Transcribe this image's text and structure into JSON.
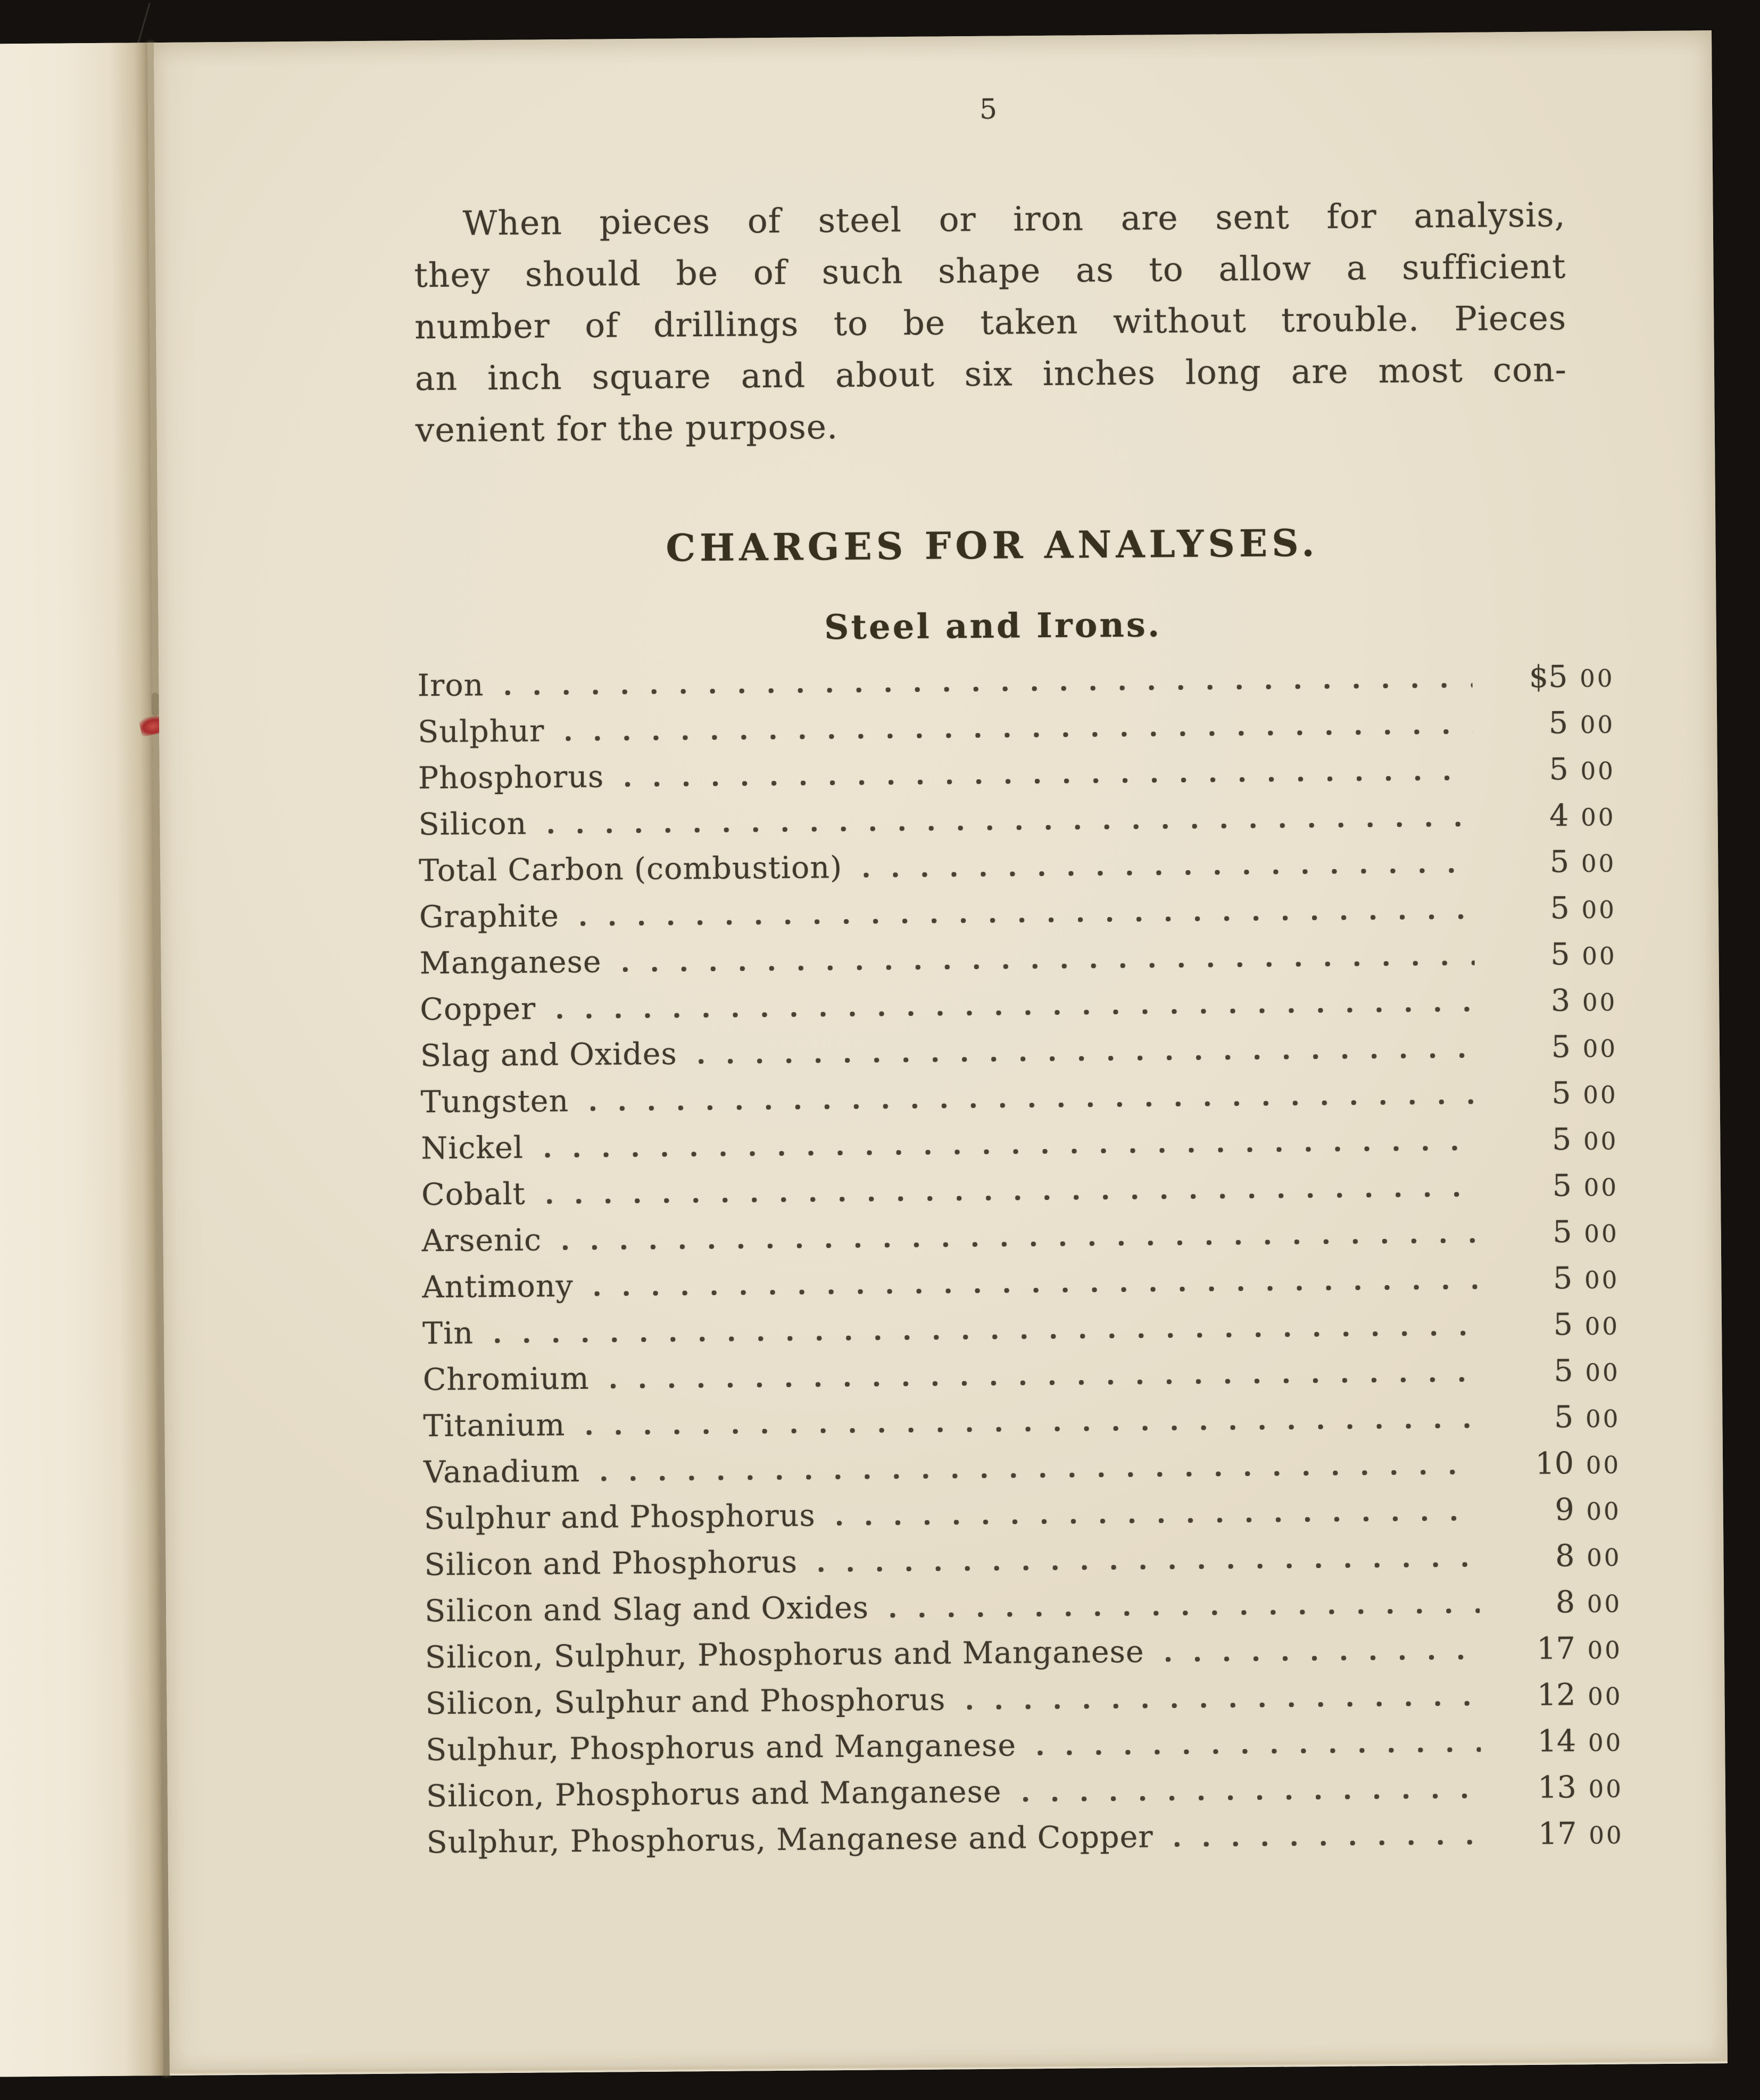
{
  "page": {
    "number": "5",
    "paragraph_lines": [
      "When pieces of steel or iron are sent for analysis,",
      "they should be of such shape as to allow a sufficient",
      "number of drillings to be taken without trouble. Pieces",
      "an inch square and about six inches long are most con-",
      "venient for the purpose."
    ],
    "heading": "CHARGES FOR ANALYSES.",
    "subheading": "Steel and Irons.",
    "price_list": [
      {
        "label": "Iron",
        "dollars": "$5",
        "cents": "00"
      },
      {
        "label": "Sulphur",
        "dollars": "5",
        "cents": "00"
      },
      {
        "label": "Phosphorus",
        "dollars": "5",
        "cents": "00"
      },
      {
        "label": "Silicon",
        "dollars": "4",
        "cents": "00"
      },
      {
        "label": "Total Carbon (combustion)",
        "dollars": "5",
        "cents": "00"
      },
      {
        "label": "Graphite",
        "dollars": "5",
        "cents": "00"
      },
      {
        "label": "Manganese",
        "dollars": "5",
        "cents": "00"
      },
      {
        "label": "Copper",
        "dollars": "3",
        "cents": "00"
      },
      {
        "label": "Slag and Oxides",
        "dollars": "5",
        "cents": "00"
      },
      {
        "label": "Tungsten",
        "dollars": "5",
        "cents": "00"
      },
      {
        "label": "Nickel",
        "dollars": "5",
        "cents": "00"
      },
      {
        "label": "Cobalt",
        "dollars": "5",
        "cents": "00"
      },
      {
        "label": "Arsenic",
        "dollars": "5",
        "cents": "00"
      },
      {
        "label": "Antimony",
        "dollars": "5",
        "cents": "00"
      },
      {
        "label": "Tin",
        "dollars": "5",
        "cents": "00"
      },
      {
        "label": "Chromium",
        "dollars": "5",
        "cents": "00"
      },
      {
        "label": "Titanium",
        "dollars": "5",
        "cents": "00"
      },
      {
        "label": "Vanadium",
        "dollars": "10",
        "cents": "00"
      },
      {
        "label": "Sulphur and Phosphorus",
        "dollars": "9",
        "cents": "00"
      },
      {
        "label": "Silicon and Phosphorus",
        "dollars": "8",
        "cents": "00"
      },
      {
        "label": "Silicon and Slag and Oxides",
        "dollars": "8",
        "cents": "00"
      },
      {
        "label": "Silicon, Sulphur, Phosphorus and Manganese",
        "dollars": "17",
        "cents": "00"
      },
      {
        "label": "Silicon, Sulphur and Phosphorus",
        "dollars": "12",
        "cents": "00"
      },
      {
        "label": "Sulphur, Phosphorus and Manganese",
        "dollars": "14",
        "cents": "00"
      },
      {
        "label": "Silicon, Phosphorus and Manganese",
        "dollars": "13",
        "cents": "00"
      },
      {
        "label": "Sulphur, Phosphorus, Manganese and Copper",
        "dollars": "17",
        "cents": "00"
      }
    ],
    "colors": {
      "paper": "#eae2cf",
      "facing_paper": "#f0e8d7",
      "ink": "#3f382c",
      "background": "#14110e",
      "fold_shadow": "#a1937a",
      "stitch_red": "#a62b2c"
    }
  }
}
